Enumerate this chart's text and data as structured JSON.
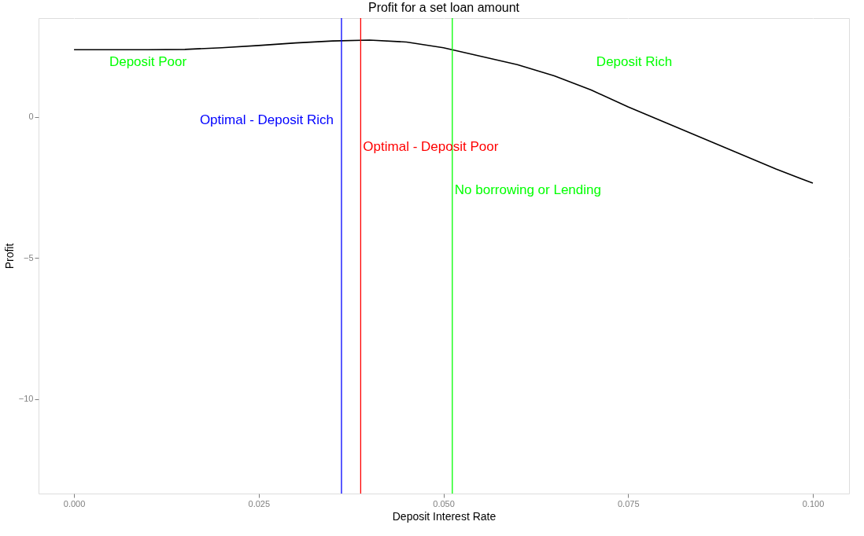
{
  "chart_data": {
    "type": "line",
    "title": "Profit for a set loan amount",
    "xlabel": "Deposit Interest Rate",
    "ylabel": "Profit",
    "x": [
      0,
      0.005,
      0.01,
      0.015,
      0.02,
      0.025,
      0.03,
      0.035,
      0.04,
      0.045,
      0.05,
      0.055,
      0.06,
      0.065,
      0.07,
      0.075,
      0.08,
      0.085,
      0.09,
      0.095,
      0.1
    ],
    "series": [
      {
        "color": "#000000",
        "values": [
          2.38,
          2.38,
          2.38,
          2.39,
          2.45,
          2.53,
          2.62,
          2.69,
          2.72,
          2.65,
          2.45,
          2.15,
          1.85,
          1.45,
          0.95,
          0.35,
          -0.2,
          -0.75,
          -1.3,
          -1.85,
          -2.35
        ]
      }
    ],
    "xlim": [
      -0.0048,
      0.1049
    ],
    "ylim": [
      -13.35,
      3.5
    ],
    "xticks": [
      {
        "value": 0,
        "label": "0.000"
      },
      {
        "value": 0.025,
        "label": "0.025"
      },
      {
        "value": 0.05,
        "label": "0.050"
      },
      {
        "value": 0.075,
        "label": "0.075"
      },
      {
        "value": 0.1,
        "label": "0.100"
      }
    ],
    "yticks": [
      -10,
      -5,
      0
    ],
    "grid": true,
    "line_style": "solid",
    "marker": "none",
    "ref_lines": [
      {
        "axis": "x",
        "value": 0.0362,
        "color": "#0000ff",
        "label": "Optimal - Deposit Rich"
      },
      {
        "axis": "x",
        "value": 0.0388,
        "color": "#ff0000",
        "label": "Optimal - Deposit Poor"
      },
      {
        "axis": "x",
        "value": 0.0512,
        "color": "#00ff00",
        "label": "No borrowing or Lending"
      }
    ],
    "annotations": [
      "Deposit Poor",
      "Deposit Rich"
    ]
  }
}
